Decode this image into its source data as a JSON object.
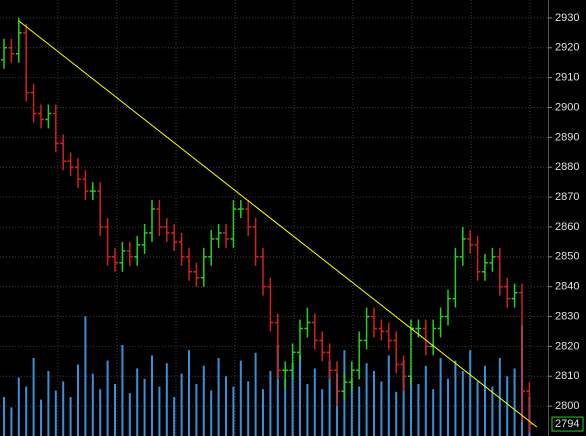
{
  "chart_data": {
    "type": "ohlc",
    "up_color": "#22d022",
    "down_color": "#d02020",
    "volume_color": "#3a8fd9",
    "grid": true,
    "ylim": [
      2790,
      2936
    ],
    "yticks": [
      2800,
      2810,
      2820,
      2830,
      2840,
      2850,
      2860,
      2870,
      2880,
      2890,
      2900,
      2910,
      2920,
      2930
    ],
    "open": [
      2916,
      2920,
      2918,
      2925,
      2905,
      2898,
      2896,
      2898,
      2888,
      2882,
      2880,
      2876,
      2872,
      2872,
      2860,
      2850,
      2848,
      2852,
      2850,
      2854,
      2858,
      2866,
      2860,
      2858,
      2855,
      2850,
      2845,
      2843,
      2850,
      2856,
      2858,
      2856,
      2866,
      2866,
      2860,
      2850,
      2840,
      2828,
      2812,
      2812,
      2818,
      2826,
      2828,
      2822,
      2818,
      2812,
      2805,
      2808,
      2812,
      2822,
      2830,
      2826,
      2825,
      2822,
      2814,
      2810,
      2826,
      2826,
      2820,
      2826,
      2830,
      2836,
      2850,
      2856,
      2854,
      2845,
      2848,
      2850,
      2840,
      2836,
      2838,
      2805
    ],
    "high": [
      2923,
      2923,
      2930,
      2928,
      2908,
      2901,
      2901,
      2901,
      2891,
      2885,
      2883,
      2879,
      2875,
      2875,
      2863,
      2853,
      2855,
      2855,
      2857,
      2861,
      2869,
      2869,
      2863,
      2861,
      2858,
      2853,
      2848,
      2853,
      2859,
      2861,
      2861,
      2869,
      2869,
      2869,
      2863,
      2853,
      2843,
      2831,
      2815,
      2821,
      2829,
      2833,
      2831,
      2825,
      2821,
      2815,
      2811,
      2815,
      2825,
      2833,
      2833,
      2829,
      2828,
      2825,
      2817,
      2829,
      2829,
      2829,
      2829,
      2833,
      2839,
      2853,
      2860,
      2859,
      2857,
      2851,
      2853,
      2853,
      2843,
      2841,
      2841,
      2808
    ],
    "low": [
      2913,
      2915,
      2915,
      2902,
      2895,
      2893,
      2893,
      2885,
      2879,
      2877,
      2873,
      2869,
      2869,
      2857,
      2847,
      2845,
      2845,
      2847,
      2847,
      2851,
      2855,
      2857,
      2855,
      2852,
      2847,
      2842,
      2840,
      2840,
      2847,
      2853,
      2853,
      2853,
      2863,
      2857,
      2847,
      2837,
      2825,
      2809,
      2806,
      2809,
      2815,
      2823,
      2819,
      2815,
      2809,
      2800,
      2802,
      2805,
      2809,
      2819,
      2823,
      2822,
      2819,
      2811,
      2805,
      2807,
      2823,
      2817,
      2817,
      2823,
      2827,
      2833,
      2847,
      2851,
      2842,
      2842,
      2845,
      2837,
      2833,
      2833,
      2795,
      2791
    ],
    "close": [
      2920,
      2918,
      2925,
      2905,
      2898,
      2896,
      2898,
      2888,
      2882,
      2880,
      2876,
      2872,
      2872,
      2860,
      2850,
      2848,
      2852,
      2850,
      2854,
      2858,
      2866,
      2860,
      2858,
      2855,
      2850,
      2845,
      2843,
      2850,
      2856,
      2858,
      2856,
      2866,
      2866,
      2860,
      2850,
      2840,
      2828,
      2812,
      2812,
      2818,
      2826,
      2828,
      2822,
      2818,
      2812,
      2805,
      2808,
      2812,
      2822,
      2830,
      2826,
      2825,
      2822,
      2814,
      2810,
      2826,
      2826,
      2820,
      2826,
      2830,
      2836,
      2850,
      2856,
      2854,
      2845,
      2848,
      2850,
      2840,
      2836,
      2838,
      2805,
      2794
    ],
    "volume": [
      30,
      22,
      45,
      38,
      60,
      28,
      50,
      35,
      42,
      30,
      55,
      92,
      48,
      36,
      58,
      40,
      70,
      33,
      52,
      44,
      62,
      38,
      56,
      30,
      48,
      66,
      40,
      54,
      35,
      60,
      46,
      38,
      58,
      42,
      64,
      36,
      50,
      70,
      44,
      56,
      62,
      40,
      52,
      36,
      58,
      48,
      66,
      44,
      38,
      56,
      50,
      42,
      62,
      34,
      58,
      46,
      40,
      54,
      36,
      60,
      44,
      58,
      50,
      66,
      42,
      54,
      38,
      60,
      46,
      52,
      85,
      30
    ],
    "trendline": {
      "color": "#ffff00",
      "x": [
        2,
        72
      ],
      "values": [
        2929,
        2793
      ]
    }
  }
}
